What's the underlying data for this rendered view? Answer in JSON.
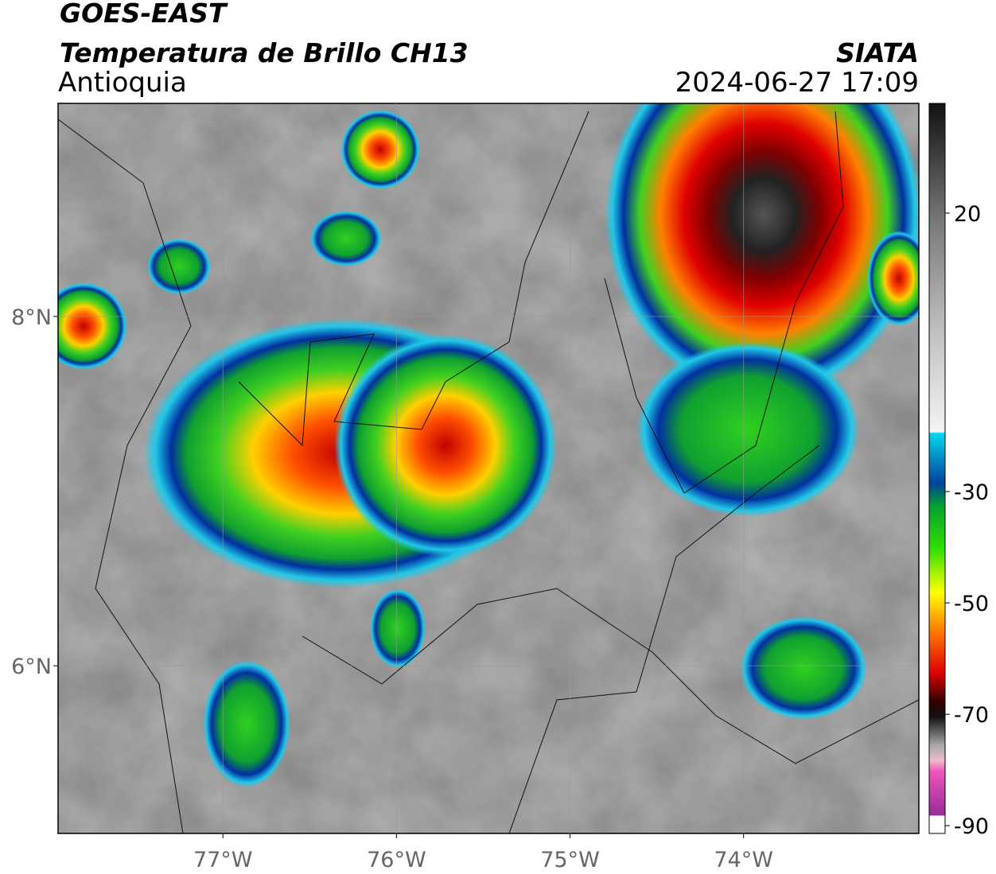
{
  "header": {
    "satellite": "GOES-EAST",
    "product": "Temperatura de Brillo CH13",
    "region": "Antioquia",
    "agency": "SIATA",
    "datetime": "2024-06-27 17:09"
  },
  "map": {
    "xlim": [
      -77.95,
      -72.99
    ],
    "ylim": [
      5.04,
      9.22
    ],
    "xticks": [
      {
        "value": -77,
        "label": "77°W"
      },
      {
        "value": -76,
        "label": "76°W"
      },
      {
        "value": -75,
        "label": "75°W"
      },
      {
        "value": -74,
        "label": "74°W"
      }
    ],
    "yticks": [
      {
        "value": 8,
        "label": "8°N"
      },
      {
        "value": 6,
        "label": "6°N"
      }
    ],
    "grid": true
  },
  "colorbar": {
    "lim": [
      -91.4,
      39.7
    ],
    "ticks": [
      20,
      -30,
      -50,
      -70,
      -90
    ]
  }
}
